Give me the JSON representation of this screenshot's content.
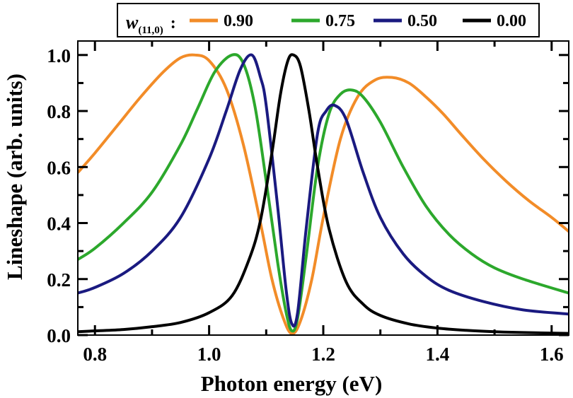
{
  "chart_data": {
    "type": "line",
    "title": "",
    "xlabel": "Photon energy (eV)",
    "ylabel": "Lineshape (arb. units)",
    "xlim": [
      0.77,
      1.63
    ],
    "ylim": [
      0.0,
      1.05
    ],
    "xticks": [
      0.8,
      1.0,
      1.2,
      1.4,
      1.6
    ],
    "xtick_labels": [
      "0.8",
      "1.0",
      "1.2",
      "1.4",
      "1.6"
    ],
    "yticks": [
      0.0,
      0.2,
      0.4,
      0.6,
      0.8,
      1.0
    ],
    "ytick_labels": [
      "0.0",
      "0.2",
      "0.4",
      "0.6",
      "0.8",
      "1.0"
    ],
    "grid": false,
    "legend": {
      "placement": "top-center",
      "title_main": "w",
      "title_sub": "(11,0)",
      "title_suffix": ":"
    },
    "series": [
      {
        "name": "0.90",
        "color": "#f28c28",
        "x": [
          0.77,
          0.8,
          0.84,
          0.88,
          0.92,
          0.95,
          0.975,
          1.0,
          1.03,
          1.06,
          1.09,
          1.11,
          1.13,
          1.145,
          1.16,
          1.18,
          1.2,
          1.23,
          1.26,
          1.29,
          1.32,
          1.35,
          1.38,
          1.41,
          1.44,
          1.48,
          1.52,
          1.56,
          1.6,
          1.63
        ],
        "values": [
          0.58,
          0.65,
          0.75,
          0.85,
          0.94,
          0.99,
          1.0,
          0.98,
          0.88,
          0.68,
          0.4,
          0.2,
          0.06,
          0.005,
          0.05,
          0.2,
          0.42,
          0.7,
          0.85,
          0.91,
          0.92,
          0.9,
          0.85,
          0.79,
          0.72,
          0.63,
          0.55,
          0.48,
          0.42,
          0.37
        ]
      },
      {
        "name": "0.75",
        "color": "#2ca82c",
        "x": [
          0.77,
          0.8,
          0.85,
          0.9,
          0.95,
          0.98,
          1.01,
          1.04,
          1.06,
          1.08,
          1.1,
          1.12,
          1.135,
          1.145,
          1.155,
          1.17,
          1.19,
          1.21,
          1.23,
          1.25,
          1.27,
          1.3,
          1.34,
          1.38,
          1.42,
          1.46,
          1.5,
          1.55,
          1.63
        ],
        "values": [
          0.27,
          0.31,
          0.4,
          0.51,
          0.68,
          0.81,
          0.94,
          1.0,
          0.97,
          0.82,
          0.55,
          0.26,
          0.08,
          0.015,
          0.06,
          0.28,
          0.6,
          0.79,
          0.86,
          0.875,
          0.85,
          0.76,
          0.6,
          0.46,
          0.36,
          0.29,
          0.24,
          0.2,
          0.15
        ]
      },
      {
        "name": "0.50",
        "color": "#1a1a80",
        "x": [
          0.77,
          0.8,
          0.85,
          0.9,
          0.95,
          1.0,
          1.03,
          1.055,
          1.075,
          1.09,
          1.1,
          1.12,
          1.135,
          1.145,
          1.155,
          1.17,
          1.19,
          1.205,
          1.22,
          1.24,
          1.27,
          1.3,
          1.34,
          1.38,
          1.42,
          1.48,
          1.55,
          1.63
        ],
        "values": [
          0.15,
          0.17,
          0.22,
          0.3,
          0.42,
          0.63,
          0.8,
          0.95,
          1.0,
          0.92,
          0.82,
          0.46,
          0.16,
          0.04,
          0.08,
          0.38,
          0.72,
          0.8,
          0.82,
          0.77,
          0.58,
          0.42,
          0.29,
          0.21,
          0.16,
          0.12,
          0.09,
          0.075
        ]
      },
      {
        "name": "0.00",
        "color": "#000000",
        "x": [
          0.77,
          0.8,
          0.85,
          0.9,
          0.95,
          1.0,
          1.04,
          1.07,
          1.09,
          1.11,
          1.125,
          1.138,
          1.148,
          1.16,
          1.175,
          1.19,
          1.21,
          1.24,
          1.27,
          1.3,
          1.35,
          1.4,
          1.45,
          1.5,
          1.55,
          1.63
        ],
        "values": [
          0.012,
          0.015,
          0.02,
          0.03,
          0.045,
          0.08,
          0.14,
          0.27,
          0.41,
          0.65,
          0.86,
          0.98,
          1.0,
          0.96,
          0.8,
          0.6,
          0.38,
          0.19,
          0.11,
          0.07,
          0.04,
          0.025,
          0.017,
          0.012,
          0.009,
          0.006
        ]
      }
    ]
  }
}
